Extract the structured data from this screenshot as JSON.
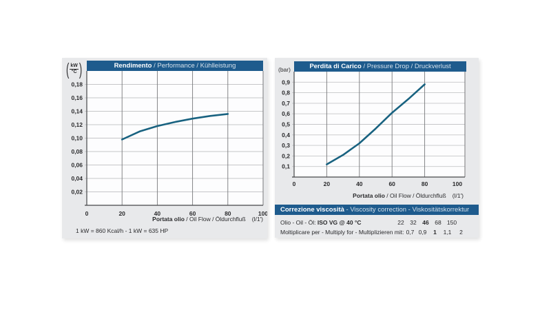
{
  "colors": {
    "accent_blue": "#1e5b8d",
    "curve_blue": "#186280",
    "panel_bg": "#e8e9eb",
    "grid_light": "#c5c6c8",
    "grid_dark": "#77787a",
    "axis_dark": "#444648"
  },
  "left_panel": {
    "paren_open": "(",
    "paren_close": ")",
    "y_unit_top": "kW",
    "y_unit_bottom": "°C",
    "title_bold": "Rendimento",
    "title_rest": " / Performance / Kühlleistung",
    "x_caption_bold": "Portata olio",
    "x_caption_rest": " / Oil Flow / Öldurchfluß",
    "x_caption_unit": "(l/1')",
    "footnote": "1 kW = 860 Kcal/h  - 1 kW = 635 HP"
  },
  "right_panel": {
    "y_unit": "(bar)",
    "title_bold": "Perdita di Carico",
    "title_rest": " / Pressure Drop / Druckverlust",
    "x_caption_bold": "Portata olio",
    "x_caption_rest": " / Oil Flow / Öldurchfluß",
    "x_caption_unit": "(l/1')"
  },
  "viscosity_table": {
    "header_bold": "Correzione viscosità",
    "header_rest": "  -  Viscosity correction  -  Viskositätskorrektur",
    "row1_label_normal": "Olio - Oil - Öl: ",
    "row1_label_bold": "ISO VG @ 40 °C",
    "row1_values": [
      "22",
      "32",
      "46",
      "68",
      "150"
    ],
    "row2_label": "Moltiplicare per - Multiply for - Multiplizieren mit:",
    "row2_values": [
      "0,7",
      "0,9",
      "1",
      "1,1",
      "2"
    ]
  },
  "chart_data": [
    {
      "type": "line",
      "title": "Rendimento / Performance / Kühlleistung",
      "xlabel": "Portata olio / Oil Flow / Öldurchfluß (l/1')",
      "ylabel": "kW/°C",
      "xlim": [
        0,
        100
      ],
      "ylim": [
        0,
        0.2
      ],
      "xticks": [
        0,
        20,
        40,
        60,
        80,
        100
      ],
      "yticks": [
        0.02,
        0.04,
        0.06,
        0.08,
        0.1,
        0.12,
        0.14,
        0.16,
        0.18
      ],
      "ytick_labels": [
        "0,02",
        "0,04",
        "0,06",
        "0,08",
        "0,10",
        "0,12",
        "0,14",
        "0,16",
        "0,18"
      ],
      "grid": true,
      "legend": "none",
      "line_color": "#186280",
      "series": [
        {
          "name": "Rendimento / Performance",
          "x": [
            20,
            30,
            40,
            50,
            60,
            70,
            80
          ],
          "y": [
            0.098,
            0.11,
            0.118,
            0.124,
            0.129,
            0.133,
            0.136
          ]
        }
      ]
    },
    {
      "type": "line",
      "title": "Perdita di Carico / Pressure Drop / Druckverlust",
      "xlabel": "Portata olio / Oil Flow / Öldurchfluß (l/1')",
      "ylabel": "bar",
      "xlim": [
        0,
        100
      ],
      "ylim": [
        0,
        1.0
      ],
      "xticks": [
        0,
        20,
        40,
        60,
        80,
        100
      ],
      "yticks": [
        0.1,
        0.2,
        0.3,
        0.4,
        0.5,
        0.6,
        0.7,
        0.8,
        0.9
      ],
      "ytick_labels": [
        "0,1",
        "0,2",
        "0,3",
        "0,4",
        "0,5",
        "0,6",
        "0,7",
        "0,8",
        "0,9"
      ],
      "grid": true,
      "legend": "none",
      "line_color": "#186280",
      "series": [
        {
          "name": "Perdita di carico / Pressure drop",
          "x": [
            20,
            30,
            40,
            50,
            60,
            70,
            80
          ],
          "y": [
            0.12,
            0.21,
            0.32,
            0.46,
            0.61,
            0.74,
            0.88
          ]
        }
      ]
    }
  ]
}
